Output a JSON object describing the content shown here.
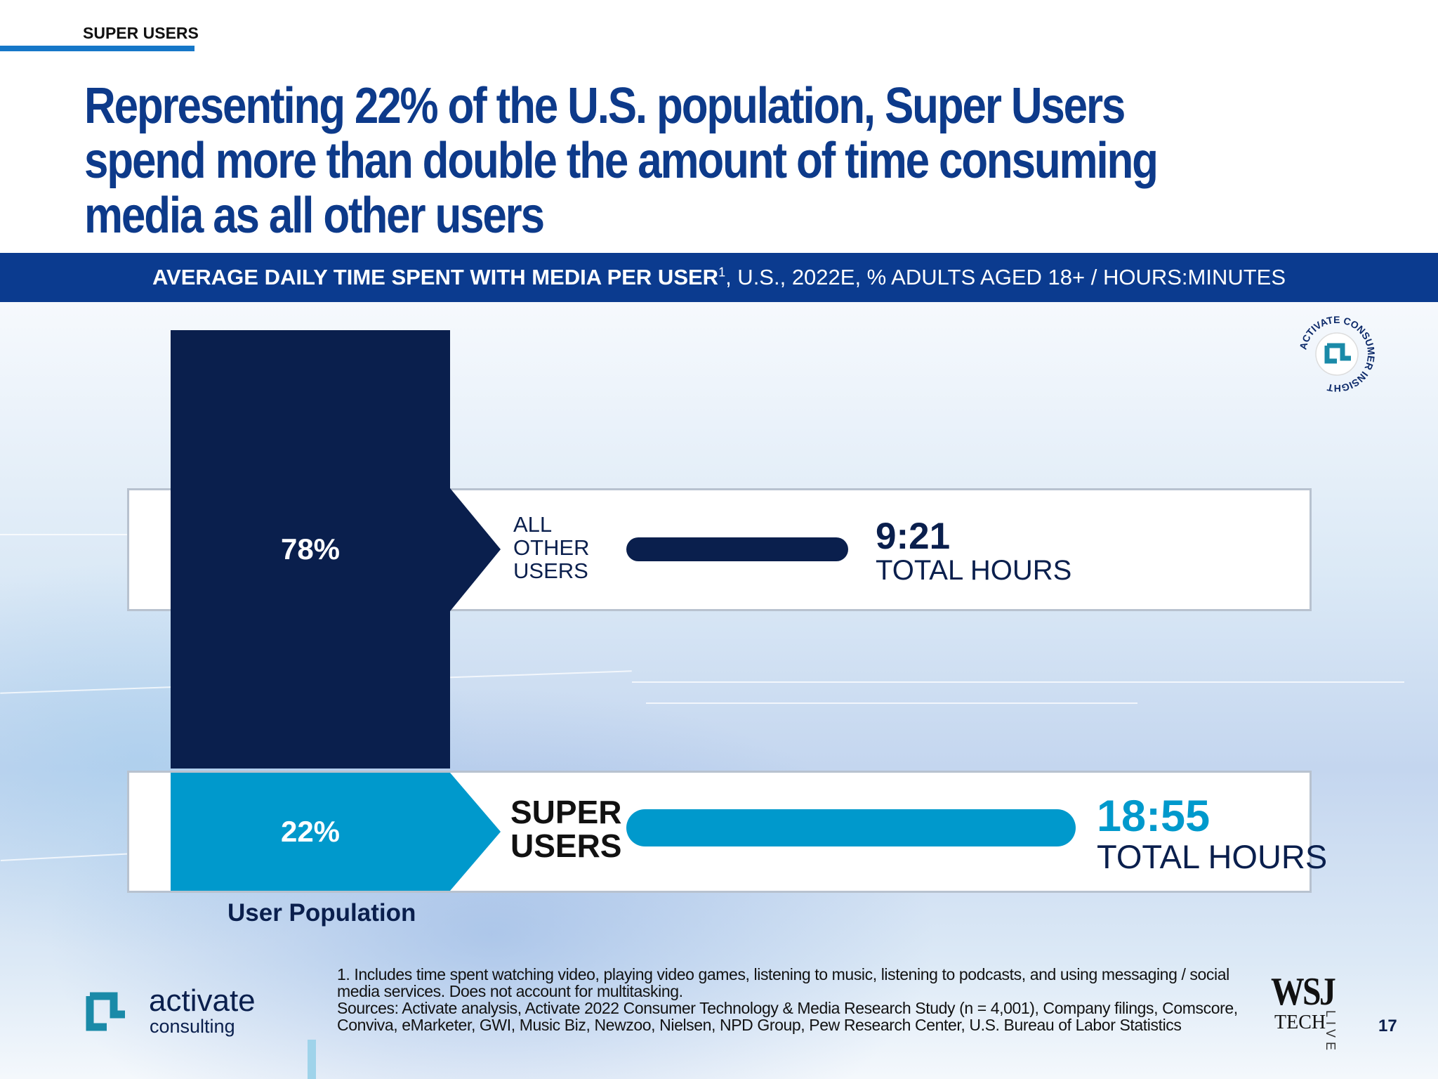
{
  "header": {
    "kicker": "SUPER USERS",
    "title": "Representing 22% of the U.S. population, Super Users spend more than double the amount of time consuming media as all other users"
  },
  "band": {
    "bold": "AVERAGE DAILY TIME SPENT WITH MEDIA PER USER",
    "sup": "1",
    "rest": ", U.S., 2022E, % ADULTS AGED 18+ / HOURS:MINUTES"
  },
  "seal": {
    "text": "ACTIVATE CONSUMER INSIGHT"
  },
  "rows": [
    {
      "share": "78%",
      "label_lines": [
        "ALL",
        "OTHER",
        "USERS"
      ],
      "time": "9:21",
      "time_label": "TOTAL HOURS",
      "color": "#0a1f4d"
    },
    {
      "share": "22%",
      "label_lines": [
        "SUPER",
        "USERS"
      ],
      "time": "18:55",
      "time_label": "TOTAL HOURS",
      "color": "#0099cc"
    }
  ],
  "chart_data": {
    "type": "bar",
    "categories": [
      "All Other Users",
      "Super Users"
    ],
    "population_share_pct": [
      78,
      22
    ],
    "daily_time_hours_minutes": [
      "9:21",
      "18:55"
    ],
    "xlabel": "User Population"
  },
  "footer": {
    "note": "1. Includes time spent watching video, playing video games, listening to music, listening to podcasts, and using messaging / social media services. Does not account for multitasking.",
    "sources": "Sources: Activate analysis, Activate 2022 Consumer Technology & Media Research Study (n = 4,001), Company filings, Comscore, Conviva, eMarketer, GWI, Music Biz, Newzoo, Nielsen, NPD Group, Pew Research Center, U.S. Bureau of Labor Statistics",
    "logo_main": "activate",
    "logo_sub": "consulting",
    "wsj": "WSJ",
    "wsj_tech": "TECH",
    "wsj_live": "LIVE",
    "page": "17"
  }
}
